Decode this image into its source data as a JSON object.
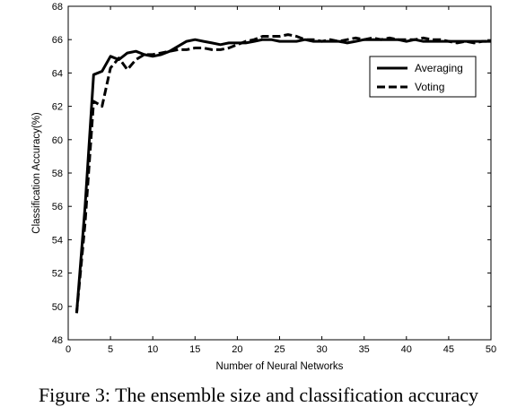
{
  "caption": "Figure 3: The ensemble size and classification accuracy",
  "chart_data": {
    "type": "line",
    "title": "",
    "xlabel": "Number of Neural Networks",
    "ylabel": "Classification Accuracy(%)",
    "xlim": [
      0,
      50
    ],
    "ylim": [
      48,
      68
    ],
    "xticks": [
      0,
      5,
      10,
      15,
      20,
      25,
      30,
      35,
      40,
      45,
      50
    ],
    "yticks": [
      48,
      50,
      52,
      54,
      56,
      58,
      60,
      62,
      64,
      66,
      68
    ],
    "grid": false,
    "legend_position": "top-right",
    "series": [
      {
        "name": "Averaging",
        "style": "solid",
        "color": "#000000",
        "x": [
          1,
          2,
          3,
          4,
          5,
          6,
          7,
          8,
          9,
          10,
          11,
          12,
          13,
          14,
          15,
          16,
          17,
          18,
          19,
          20,
          21,
          22,
          23,
          24,
          25,
          26,
          27,
          28,
          29,
          30,
          31,
          32,
          33,
          34,
          35,
          36,
          37,
          38,
          39,
          40,
          41,
          42,
          43,
          44,
          45,
          46,
          47,
          48,
          49,
          50
        ],
        "y": [
          49.6,
          56.0,
          63.9,
          64.1,
          65.0,
          64.8,
          65.2,
          65.3,
          65.1,
          65.0,
          65.1,
          65.3,
          65.6,
          65.9,
          66.0,
          65.9,
          65.8,
          65.7,
          65.8,
          65.8,
          65.8,
          65.9,
          66.0,
          66.0,
          65.9,
          65.9,
          65.9,
          66.0,
          65.9,
          65.9,
          65.9,
          65.9,
          65.8,
          65.9,
          66.0,
          66.0,
          66.0,
          66.0,
          66.0,
          65.9,
          66.0,
          65.9,
          65.9,
          65.9,
          65.9,
          65.9,
          65.9,
          65.9,
          65.9,
          65.9
        ]
      },
      {
        "name": "Voting",
        "style": "dashed",
        "color": "#000000",
        "x": [
          1,
          2,
          3,
          4,
          5,
          6,
          7,
          8,
          9,
          10,
          11,
          12,
          13,
          14,
          15,
          16,
          17,
          18,
          19,
          20,
          21,
          22,
          23,
          24,
          25,
          26,
          27,
          28,
          29,
          30,
          31,
          32,
          33,
          34,
          35,
          36,
          37,
          38,
          39,
          40,
          41,
          42,
          43,
          44,
          45,
          46,
          47,
          48,
          49,
          50
        ],
        "y": [
          49.6,
          55.0,
          62.3,
          62.0,
          64.3,
          64.9,
          64.2,
          64.8,
          65.1,
          65.1,
          65.2,
          65.3,
          65.4,
          65.4,
          65.5,
          65.5,
          65.4,
          65.4,
          65.5,
          65.7,
          65.9,
          66.0,
          66.2,
          66.2,
          66.2,
          66.3,
          66.2,
          66.0,
          66.0,
          65.9,
          66.0,
          65.9,
          66.0,
          66.1,
          66.0,
          66.1,
          66.0,
          66.1,
          66.0,
          66.0,
          66.0,
          66.1,
          66.0,
          66.0,
          65.9,
          65.8,
          65.9,
          65.8,
          65.9,
          65.9
        ]
      }
    ]
  }
}
